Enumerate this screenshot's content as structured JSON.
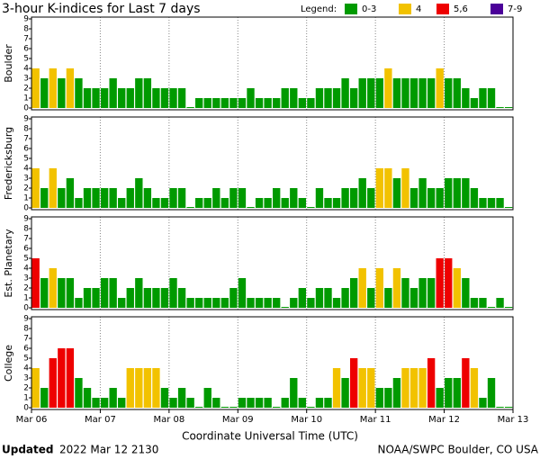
{
  "title": "3-hour K-indices for Last 7 days",
  "legend": {
    "title": "Legend:",
    "items": [
      {
        "label": "0-3",
        "color": "#009a00"
      },
      {
        "label": "4",
        "color": "#f2c200"
      },
      {
        "label": "5,6",
        "color": "#ee0000"
      },
      {
        "label": "7-9",
        "color": "#4b0099"
      }
    ]
  },
  "x_ticks": [
    "Mar 06",
    "Mar 07",
    "Mar 08",
    "Mar 09",
    "Mar 10",
    "Mar 11",
    "Mar 12",
    "Mar 13"
  ],
  "x_label": "Coordinate Universal Time (UTC)",
  "footer": {
    "bold": "Updated",
    "time": "2022 Mar 12 2130",
    "source": "NOAA/SWPC Boulder, CO USA"
  },
  "chart_data": [
    {
      "type": "bar",
      "y_label": "Boulder",
      "ylim": [
        0,
        9
      ],
      "yticks": [
        0,
        1,
        2,
        3,
        4,
        5,
        6,
        7,
        8,
        9
      ],
      "grid": true,
      "values": [
        4,
        3,
        4,
        3,
        4,
        3,
        2,
        2,
        2,
        3,
        2,
        2,
        3,
        3,
        2,
        2,
        2,
        2,
        0,
        1,
        1,
        1,
        1,
        1,
        1,
        2,
        1,
        1,
        1,
        2,
        2,
        1,
        1,
        2,
        2,
        2,
        3,
        2,
        3,
        3,
        3,
        4,
        3,
        3,
        3,
        3,
        3,
        4,
        3,
        3,
        2,
        1,
        2,
        2,
        0,
        0
      ]
    },
    {
      "type": "bar",
      "y_label": "Fredericksburg",
      "ylim": [
        0,
        9
      ],
      "yticks": [
        0,
        1,
        2,
        3,
        4,
        5,
        6,
        7,
        8,
        9
      ],
      "grid": true,
      "values": [
        4,
        2,
        4,
        2,
        3,
        1,
        2,
        2,
        2,
        2,
        1,
        2,
        3,
        2,
        1,
        1,
        2,
        2,
        0,
        1,
        1,
        2,
        1,
        2,
        2,
        0,
        1,
        1,
        2,
        1,
        2,
        1,
        0,
        2,
        1,
        1,
        2,
        2,
        3,
        2,
        4,
        4,
        3,
        4,
        2,
        3,
        2,
        2,
        3,
        3,
        3,
        2,
        1,
        1,
        1,
        0
      ]
    },
    {
      "type": "bar",
      "y_label": "Est. Planetary",
      "ylim": [
        0,
        9
      ],
      "yticks": [
        0,
        1,
        2,
        3,
        4,
        5,
        6,
        7,
        8,
        9
      ],
      "grid": true,
      "values": [
        5,
        3,
        4,
        3,
        3,
        1,
        2,
        2,
        3,
        3,
        1,
        2,
        3,
        2,
        2,
        2,
        3,
        2,
        1,
        1,
        1,
        1,
        1,
        2,
        3,
        1,
        1,
        1,
        1,
        0,
        1,
        2,
        1,
        2,
        2,
        1,
        2,
        3,
        4,
        2,
        4,
        2,
        4,
        3,
        2,
        3,
        3,
        5,
        5,
        4,
        3,
        1,
        1,
        0,
        1,
        0
      ]
    },
    {
      "type": "bar",
      "y_label": "College",
      "ylim": [
        0,
        9
      ],
      "yticks": [
        0,
        1,
        2,
        3,
        4,
        5,
        6,
        7,
        8,
        9
      ],
      "grid": true,
      "values": [
        4,
        2,
        5,
        6,
        6,
        3,
        2,
        1,
        1,
        2,
        1,
        4,
        4,
        4,
        4,
        2,
        1,
        2,
        1,
        0,
        2,
        1,
        0,
        0,
        1,
        1,
        1,
        1,
        0,
        1,
        3,
        1,
        0,
        1,
        1,
        4,
        3,
        5,
        4,
        4,
        2,
        2,
        3,
        4,
        4,
        4,
        5,
        2,
        3,
        3,
        5,
        4,
        1,
        3,
        0,
        0
      ]
    }
  ]
}
